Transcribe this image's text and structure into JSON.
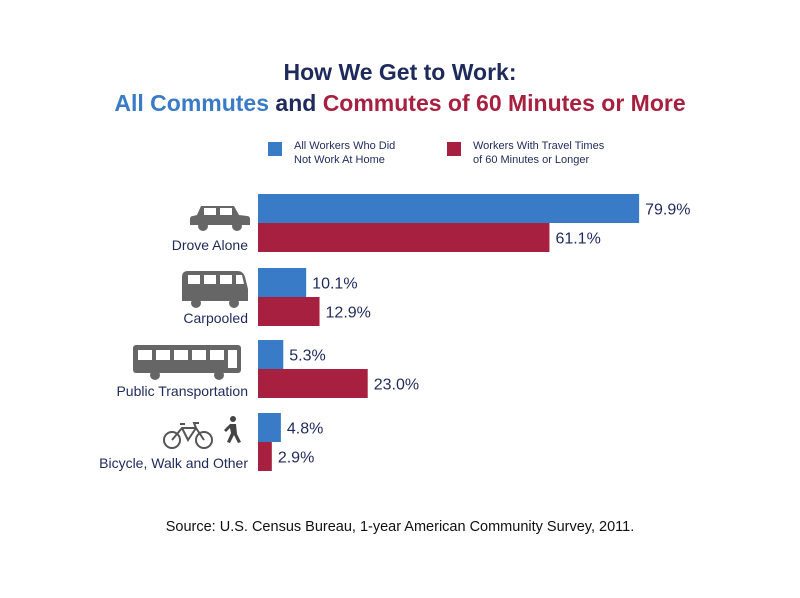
{
  "title_line1": "How We Get to Work:",
  "title_line2": {
    "part1": "All Commutes",
    "part2": " and ",
    "part3": "Commutes of 60 Minutes or More"
  },
  "legend": [
    {
      "line1": "All Workers Who Did",
      "line2": "Not Work At Home",
      "color": "#3a7bc8"
    },
    {
      "line1": "Workers With Travel Times",
      "line2": "of 60 Minutes or Longer",
      "color": "#a8203f"
    }
  ],
  "chart_data": {
    "type": "bar",
    "orientation": "horizontal",
    "categories": [
      "Drove Alone",
      "Carpooled",
      "Public Transportation",
      "Bicycle, Walk and Other"
    ],
    "category_icons": [
      "car-icon",
      "van-icon",
      "bus-icon",
      "bicycle-and-pedestrian-icon"
    ],
    "series": [
      {
        "name": "All Workers Who Did Not Work At Home",
        "values": [
          79.9,
          10.1,
          5.3,
          4.8
        ],
        "color": "#3a7bc8"
      },
      {
        "name": "Workers With Travel Times of 60 Minutes or Longer",
        "values": [
          61.1,
          12.9,
          23.0,
          2.9
        ],
        "color": "#a8203f"
      }
    ],
    "value_labels": [
      [
        "79.9%",
        "10.1%",
        "5.3%",
        "4.8%"
      ],
      [
        "61.1%",
        "12.9%",
        "23.0%",
        "2.9%"
      ]
    ],
    "xlim": [
      0,
      100
    ],
    "grid": false,
    "legend_position": "top"
  },
  "source": "Source: U.S. Census Bureau, 1-year American Community Survey, 2011."
}
